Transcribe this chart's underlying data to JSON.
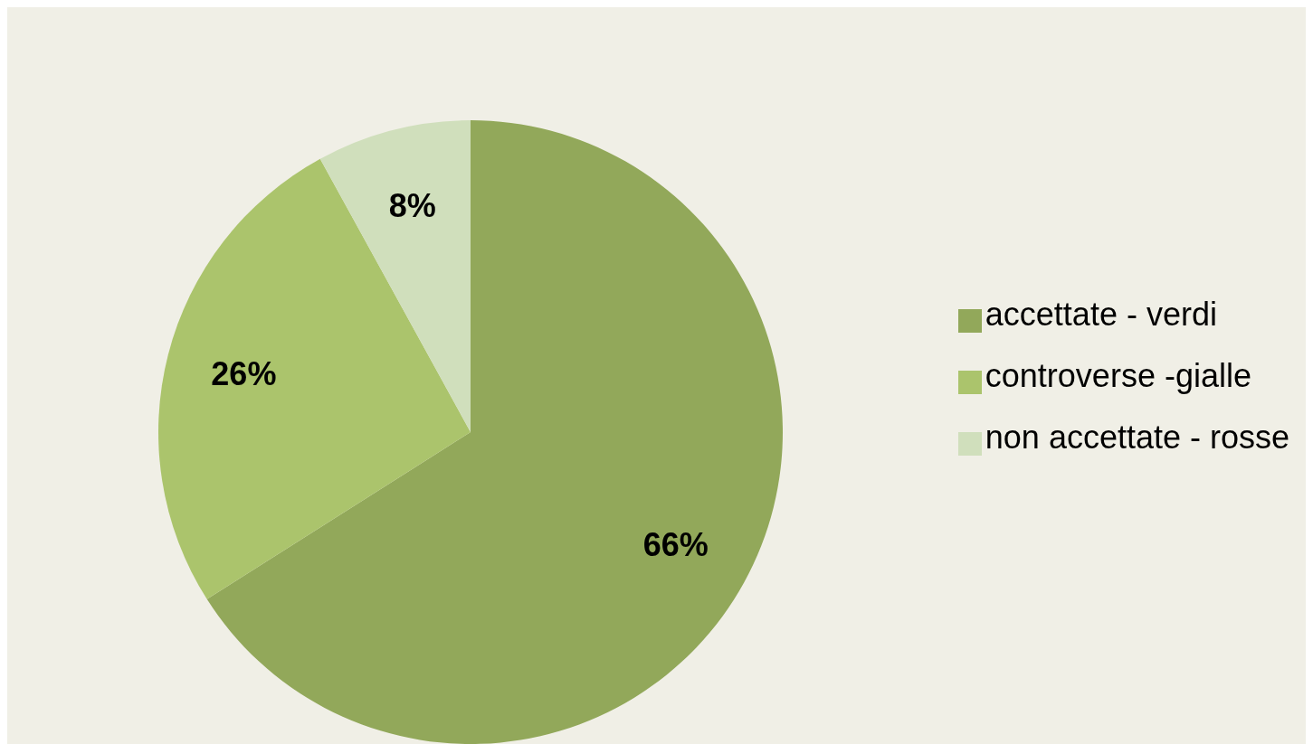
{
  "chart_data": {
    "type": "pie",
    "categories": [
      "accettate - verdi",
      "controverse -gialle",
      "non accettate - rosse"
    ],
    "values": [
      66,
      26,
      8
    ],
    "colors": [
      "#92a85a",
      "#abc46c",
      "#d0dfbc"
    ],
    "value_labels": [
      "66%",
      "26%",
      "8%"
    ],
    "legend": "right"
  }
}
